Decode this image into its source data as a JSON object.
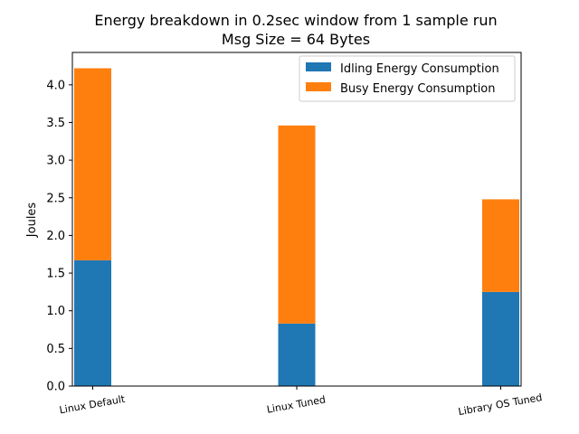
{
  "chart_data": {
    "type": "bar",
    "stacked": true,
    "title": "Energy breakdown in 0.2sec window from 1 sample run",
    "subtitle": "Msg Size = 64 Bytes",
    "xlabel": "",
    "ylabel": "Joules",
    "ylim": [
      0,
      4.43
    ],
    "yticks": [
      "0.0",
      "0.5",
      "1.0",
      "1.5",
      "2.0",
      "2.5",
      "3.0",
      "3.5",
      "4.0"
    ],
    "categories": [
      "Linux Default",
      "Linux Tuned",
      "Library OS Tuned"
    ],
    "series": [
      {
        "name": "Idling Energy Consumption",
        "color": "#1f77b4",
        "values": [
          1.67,
          0.83,
          1.25
        ]
      },
      {
        "name": "Busy Energy Consumption",
        "color": "#ff7f0e",
        "values": [
          2.55,
          2.63,
          1.23
        ]
      }
    ],
    "legend": "top-right",
    "grid": false
  }
}
